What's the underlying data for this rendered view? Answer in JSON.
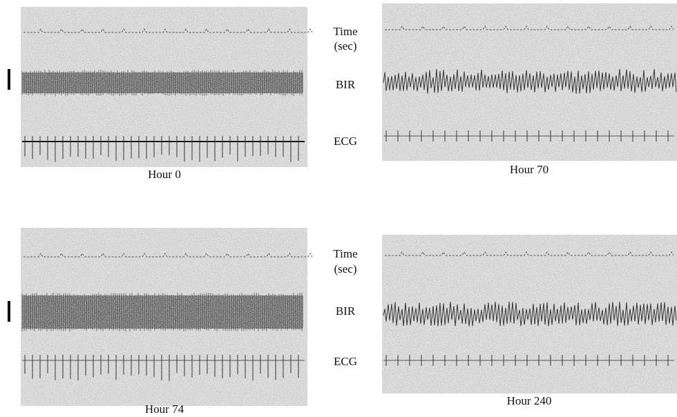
{
  "row_labels_top": {
    "time": [
      "Time",
      "(sec)"
    ],
    "bir": "BIR",
    "ecg": "ECG"
  },
  "row_labels_bottom": {
    "time": [
      "Time",
      "(sec)"
    ],
    "bir": "BIR",
    "ecg": "ECG"
  },
  "panels": [
    {
      "caption": "Hour 0"
    },
    {
      "caption": "Hour 70"
    },
    {
      "caption": "Hour 74"
    },
    {
      "caption": "Hour 240"
    }
  ]
}
